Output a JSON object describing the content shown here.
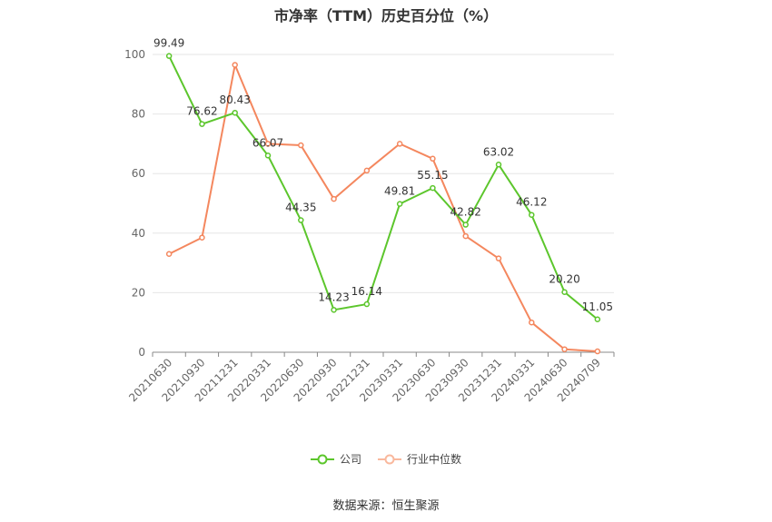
{
  "chart_data": {
    "type": "line",
    "title": "市净率（TTM）历史百分位（%）",
    "categories": [
      "20210630",
      "20210930",
      "20211231",
      "20220331",
      "20220630",
      "20220930",
      "20221231",
      "20230331",
      "20230630",
      "20230930",
      "20231231",
      "20240331",
      "20240630",
      "20240709"
    ],
    "series": [
      {
        "name": "公司",
        "color": "#5cc62c",
        "values": [
          99.49,
          76.62,
          80.43,
          66.07,
          44.35,
          14.23,
          16.14,
          49.81,
          55.15,
          42.82,
          63.02,
          46.12,
          20.2,
          11.05
        ],
        "labels": [
          "99.49",
          "76.62",
          "80.43",
          "66.07",
          "44.35",
          "14.23",
          "16.14",
          "49.81",
          "55.15",
          "42.82",
          "63.02",
          "46.12",
          "20.20",
          "11.05"
        ]
      },
      {
        "name": "行业中位数",
        "color": "#f4875e",
        "values": [
          33,
          38.5,
          96.5,
          70,
          69.5,
          51.5,
          61,
          70,
          65,
          39,
          31.5,
          10,
          1,
          0.3
        ]
      }
    ],
    "y_ticks": [
      "0",
      "20",
      "40",
      "60",
      "80",
      "100"
    ],
    "ylim": [
      0,
      100
    ],
    "grid": true,
    "legend_position": "bottom"
  },
  "source": "数据来源：恒生聚源"
}
